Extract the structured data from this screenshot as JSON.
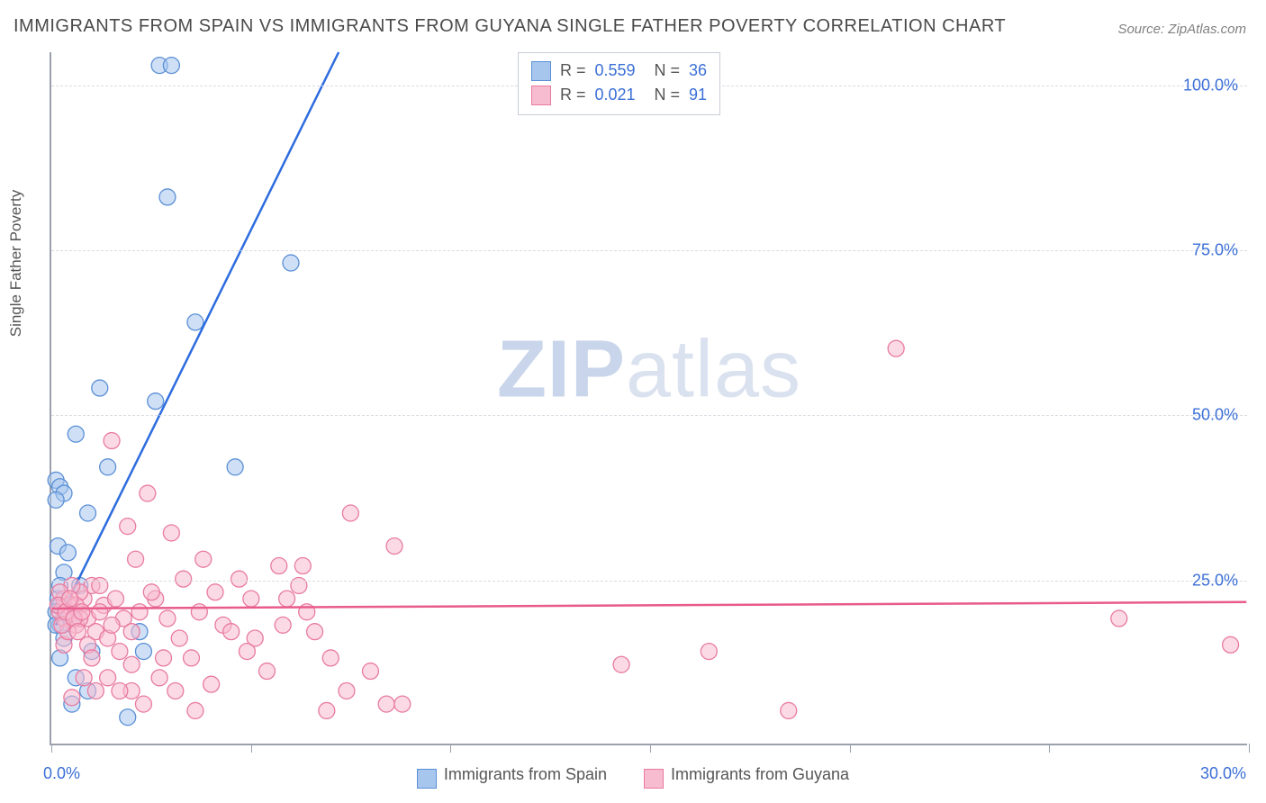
{
  "title": "IMMIGRANTS FROM SPAIN VS IMMIGRANTS FROM GUYANA SINGLE FATHER POVERTY CORRELATION CHART",
  "source": "Source: ZipAtlas.com",
  "watermark_a": "ZIP",
  "watermark_b": "atlas",
  "y_axis_label": "Single Father Poverty",
  "chart": {
    "type": "scatter",
    "xlim": [
      0,
      30
    ],
    "ylim": [
      0,
      105
    ],
    "x_ticks": [
      0,
      5,
      10,
      15,
      20,
      25,
      30
    ],
    "x_tick_labels": {
      "0": "0.0%",
      "30": "30.0%"
    },
    "y_ticks": [
      25,
      50,
      75,
      100
    ],
    "y_tick_labels": {
      "25": "25.0%",
      "50": "50.0%",
      "75": "75.0%",
      "100": "100.0%"
    },
    "background_color": "#ffffff",
    "grid_color": "#d9dce2",
    "axis_color": "#9aa0ac",
    "tick_label_color": "#3b6fd6",
    "marker_radius": 9,
    "marker_opacity": 0.55,
    "line_width": 2.5,
    "series": [
      {
        "name": "Immigrants from Spain",
        "fill_color": "#a7c6ee",
        "stroke_color": "#5a8fd6",
        "line_color": "#2d6cdf",
        "R": "0.559",
        "N": "36",
        "trend": {
          "x1": 0.1,
          "y1": 18,
          "x2": 7.2,
          "y2": 105
        },
        "points": [
          [
            2.7,
            103
          ],
          [
            3.0,
            103
          ],
          [
            2.9,
            83
          ],
          [
            6.0,
            73
          ],
          [
            3.6,
            64
          ],
          [
            1.2,
            54
          ],
          [
            2.6,
            52
          ],
          [
            0.6,
            47
          ],
          [
            0.1,
            40
          ],
          [
            0.2,
            39
          ],
          [
            1.4,
            42
          ],
          [
            4.6,
            42
          ],
          [
            0.3,
            38
          ],
          [
            0.1,
            37
          ],
          [
            0.9,
            35
          ],
          [
            0.3,
            26
          ],
          [
            0.15,
            22
          ],
          [
            0.2,
            21
          ],
          [
            0.1,
            20
          ],
          [
            0.4,
            20
          ],
          [
            0.5,
            19
          ],
          [
            0.2,
            18
          ],
          [
            0.1,
            18
          ],
          [
            0.3,
            16
          ],
          [
            2.2,
            17
          ],
          [
            1.0,
            14
          ],
          [
            2.3,
            14
          ],
          [
            0.2,
            13
          ],
          [
            0.6,
            10
          ],
          [
            1.9,
            4
          ],
          [
            0.5,
            6
          ],
          [
            0.9,
            8
          ],
          [
            0.15,
            30
          ],
          [
            0.2,
            24
          ],
          [
            0.4,
            29
          ],
          [
            0.7,
            24
          ]
        ]
      },
      {
        "name": "Immigrants from Guyana",
        "fill_color": "#f7bccf",
        "stroke_color": "#e87ba0",
        "line_color": "#e85b8c",
        "R": "0.021",
        "N": "91",
        "trend": {
          "x1": 0,
          "y1": 20.5,
          "x2": 30,
          "y2": 21.5
        },
        "points": [
          [
            21.2,
            60
          ],
          [
            26.8,
            19
          ],
          [
            29.6,
            15
          ],
          [
            14.3,
            12
          ],
          [
            16.5,
            14
          ],
          [
            18.5,
            5
          ],
          [
            7.5,
            35
          ],
          [
            8.6,
            30
          ],
          [
            6.3,
            27
          ],
          [
            5.7,
            27
          ],
          [
            6.2,
            24
          ],
          [
            5.0,
            22
          ],
          [
            4.7,
            25
          ],
          [
            4.1,
            23
          ],
          [
            3.7,
            20
          ],
          [
            4.3,
            18
          ],
          [
            5.1,
            16
          ],
          [
            5.8,
            18
          ],
          [
            6.4,
            20
          ],
          [
            7.0,
            13
          ],
          [
            7.4,
            8
          ],
          [
            8.0,
            11
          ],
          [
            8.4,
            6
          ],
          [
            8.8,
            6
          ],
          [
            6.9,
            5
          ],
          [
            4.0,
            9
          ],
          [
            3.5,
            13
          ],
          [
            3.0,
            32
          ],
          [
            2.4,
            38
          ],
          [
            1.5,
            46
          ],
          [
            1.9,
            33
          ],
          [
            2.1,
            28
          ],
          [
            2.6,
            22
          ],
          [
            2.8,
            13
          ],
          [
            3.2,
            16
          ],
          [
            1.0,
            24
          ],
          [
            1.3,
            21
          ],
          [
            1.6,
            22
          ],
          [
            1.8,
            19
          ],
          [
            2.0,
            17
          ],
          [
            0.8,
            22
          ],
          [
            0.9,
            19
          ],
          [
            1.1,
            17
          ],
          [
            1.2,
            20
          ],
          [
            1.4,
            16
          ],
          [
            0.5,
            20
          ],
          [
            0.6,
            18
          ],
          [
            0.7,
            23
          ],
          [
            0.3,
            19
          ],
          [
            0.4,
            21
          ],
          [
            0.2,
            20
          ],
          [
            0.3,
            22
          ],
          [
            0.5,
            24
          ],
          [
            0.6,
            21
          ],
          [
            0.7,
            19
          ],
          [
            0.9,
            15
          ],
          [
            1.0,
            13
          ],
          [
            1.2,
            24
          ],
          [
            1.5,
            18
          ],
          [
            1.7,
            14
          ],
          [
            2.2,
            20
          ],
          [
            2.5,
            23
          ],
          [
            2.9,
            19
          ],
          [
            3.3,
            25
          ],
          [
            3.8,
            28
          ],
          [
            4.5,
            17
          ],
          [
            4.9,
            14
          ],
          [
            5.4,
            11
          ],
          [
            5.9,
            22
          ],
          [
            6.6,
            17
          ],
          [
            2.0,
            8
          ],
          [
            2.3,
            6
          ],
          [
            2.7,
            10
          ],
          [
            3.1,
            8
          ],
          [
            3.6,
            5
          ],
          [
            1.4,
            10
          ],
          [
            1.7,
            8
          ],
          [
            2.0,
            12
          ],
          [
            0.8,
            10
          ],
          [
            1.1,
            8
          ],
          [
            0.5,
            7
          ],
          [
            0.3,
            15
          ],
          [
            0.4,
            17
          ],
          [
            0.2,
            23
          ],
          [
            0.15,
            21
          ],
          [
            0.25,
            18
          ],
          [
            0.35,
            20
          ],
          [
            0.45,
            22
          ],
          [
            0.55,
            19
          ],
          [
            0.65,
            17
          ],
          [
            0.75,
            20
          ]
        ]
      }
    ]
  },
  "legend_top": {
    "label_R": "R =",
    "label_N": "N ="
  }
}
